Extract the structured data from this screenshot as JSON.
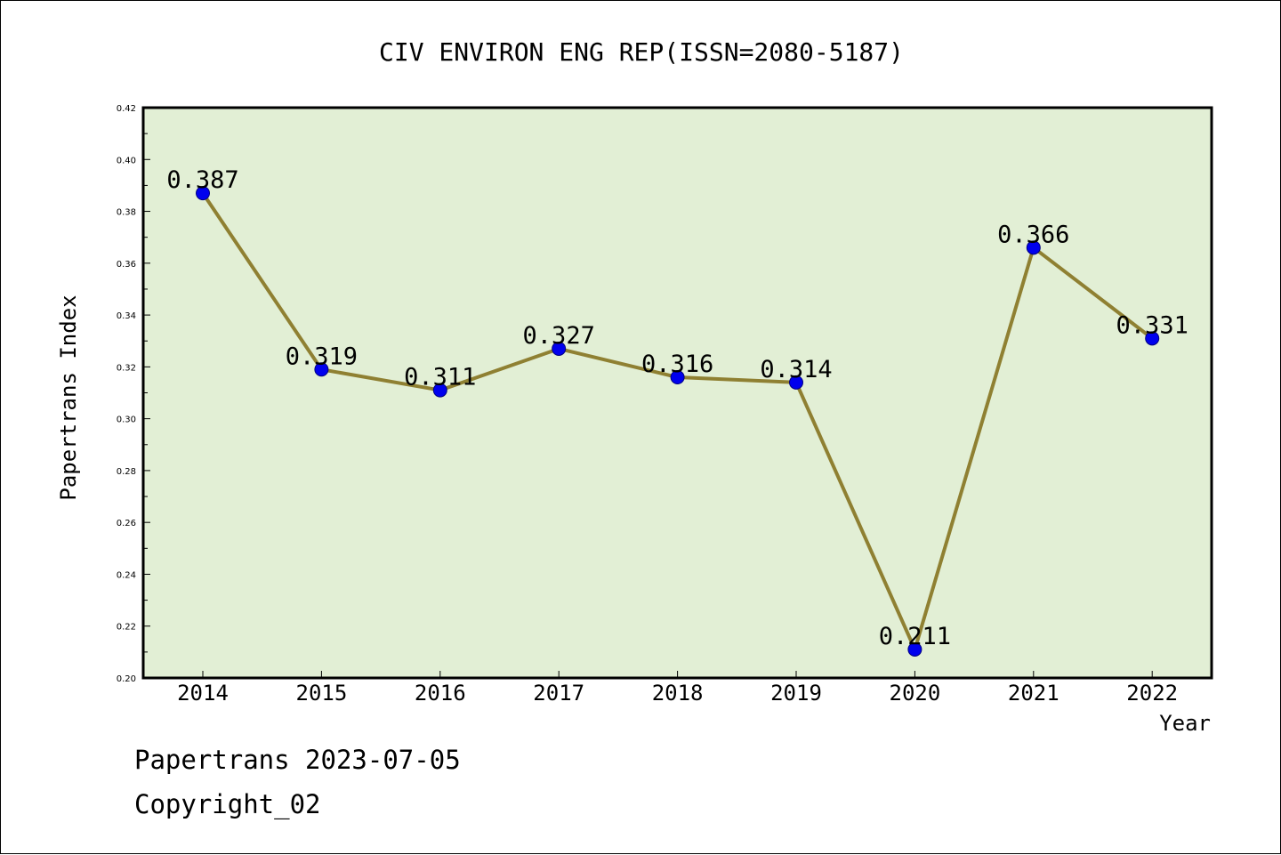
{
  "chart_data": {
    "type": "line",
    "title": "CIV ENVIRON ENG REP(ISSN=2080-5187)",
    "xlabel": "Year",
    "ylabel": "Papertrans Index",
    "categories": [
      "2014",
      "2015",
      "2016",
      "2017",
      "2018",
      "2019",
      "2020",
      "2021",
      "2022"
    ],
    "values": [
      0.387,
      0.319,
      0.311,
      0.327,
      0.316,
      0.314,
      0.211,
      0.366,
      0.331
    ],
    "data_labels": [
      "0.387",
      "0.319",
      "0.311",
      "0.327",
      "0.316",
      "0.314",
      "0.211",
      "0.366",
      "0.331"
    ],
    "ylim": [
      0.2,
      0.42
    ],
    "yticks": [
      "0.20",
      "0.22",
      "0.24",
      "0.26",
      "0.28",
      "0.30",
      "0.32",
      "0.34",
      "0.36",
      "0.38",
      "0.40",
      "0.42"
    ],
    "grid": false,
    "legend": "none"
  },
  "footer": {
    "date_line": "Papertrans 2023-07-05",
    "copyright": "Copyright_02"
  },
  "colors": {
    "plot_background": "#e2efd5",
    "line": "#8f8032",
    "marker": "#0000ee",
    "marker_edge": "#000080"
  }
}
